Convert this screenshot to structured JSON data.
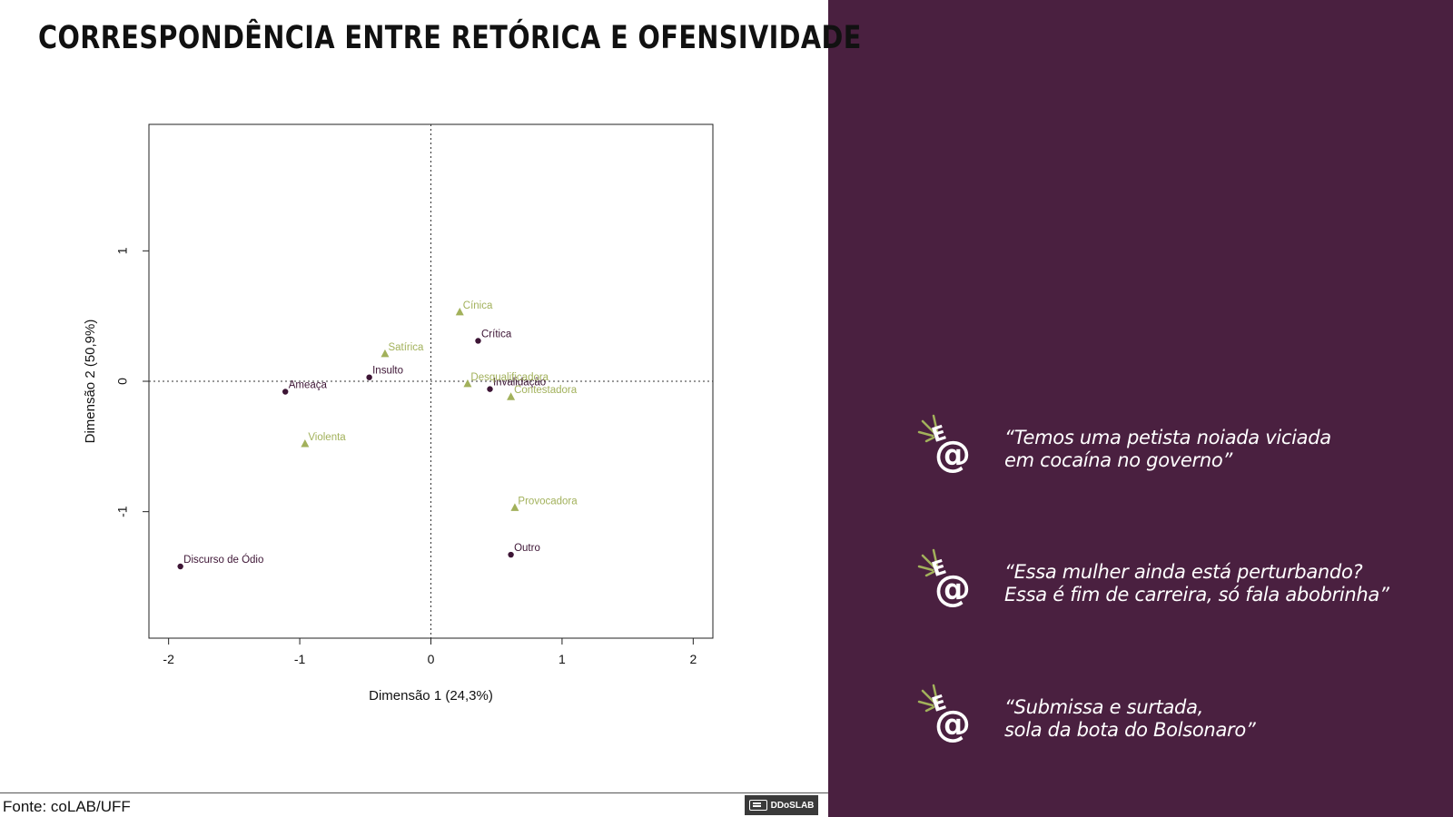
{
  "slide": {
    "title": "Correspondência entre Retórica e Ofensividade",
    "source": "Fonte: coLAB/UFF",
    "logo_text": "DDoSLAB"
  },
  "colors": {
    "panel_bg": "#4a2040",
    "series_dark": "#3d1535",
    "series_light": "#a2b15b",
    "quote_text": "#ffffff"
  },
  "quotes": [
    {
      "icon": "colab-at-icon",
      "text": "“Temos uma petista noiada viciada\nem cocaína no governo”"
    },
    {
      "icon": "colab-at-icon",
      "text": "“Essa mulher ainda está perturbando?\nEssa é fim de carreira, só fala abobrinha”"
    },
    {
      "icon": "colab-at-icon",
      "text": "“Submissa e surtada,\nsola da bota do Bolsonaro”"
    }
  ],
  "chart_data": {
    "type": "scatter",
    "xlabel": "Dimensão 1 (24,3%)",
    "ylabel": "Dimensão 2 (50,9%)",
    "xlim": [
      -2.15,
      2.15
    ],
    "ylim": [
      -1.97,
      1.97
    ],
    "xticks": [
      -2,
      -1,
      0,
      1,
      2
    ],
    "yticks": [
      -1,
      0,
      1
    ],
    "grid": false,
    "reference_lines": {
      "x": 0,
      "y": 0,
      "style": "dotted"
    },
    "series": [
      {
        "marker": "circle",
        "color": "#3d1535",
        "points": [
          {
            "label": "Crítica",
            "x": 0.36,
            "y": 0.31
          },
          {
            "label": "Insulto",
            "x": -0.47,
            "y": 0.03
          },
          {
            "label": "Ameaça",
            "x": -1.11,
            "y": -0.08
          },
          {
            "label": "Invalidação",
            "x": 0.45,
            "y": -0.06
          },
          {
            "label": "Outro",
            "x": 0.61,
            "y": -1.33
          },
          {
            "label": "Discurso de Ódio",
            "x": -1.91,
            "y": -1.42
          }
        ]
      },
      {
        "marker": "triangle",
        "color": "#a2b15b",
        "points": [
          {
            "label": "Cínica",
            "x": 0.22,
            "y": 0.53
          },
          {
            "label": "Satírica",
            "x": -0.35,
            "y": 0.21
          },
          {
            "label": "Desqualificadora",
            "x": 0.28,
            "y": -0.02
          },
          {
            "label": "Contestadora",
            "x": 0.61,
            "y": -0.12
          },
          {
            "label": "Violenta",
            "x": -0.96,
            "y": -0.48
          },
          {
            "label": "Provocadora",
            "x": 0.64,
            "y": -0.97
          }
        ]
      }
    ]
  }
}
